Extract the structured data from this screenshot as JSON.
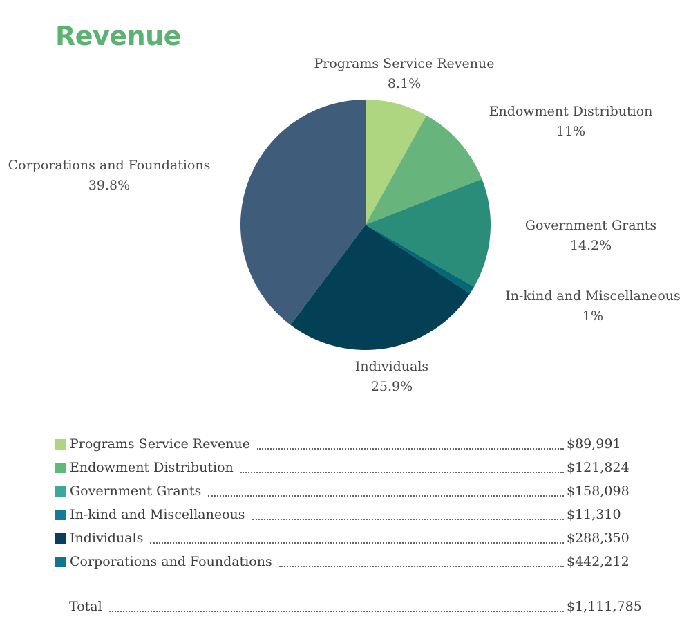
{
  "page": {
    "title": "Revenue",
    "total_label": "Total",
    "total_value": "$1,111,785"
  },
  "chart_data": {
    "type": "pie",
    "title": "Revenue",
    "series": [
      {
        "name": "Programs Service Revenue",
        "value": 89991,
        "value_label": "$89,991",
        "percent": 8.1,
        "percent_label": "8.1%",
        "color": "#aed57f"
      },
      {
        "name": "Endowment Distribution",
        "value": 121824,
        "value_label": "$121,824",
        "percent": 11,
        "percent_label": "11%",
        "color": "#67b47c"
      },
      {
        "name": "Government Grants",
        "value": 158098,
        "value_label": "$158,098",
        "percent": 14.2,
        "percent_label": "14.2%",
        "color": "#2a8d7a"
      },
      {
        "name": "In-kind and Miscellaneous",
        "value": 11310,
        "value_label": "$11,310",
        "percent": 1,
        "percent_label": "1%",
        "color": "#076775"
      },
      {
        "name": "Individuals",
        "value": 288350,
        "value_label": "$288,350",
        "percent": 25.9,
        "percent_label": "25.9%",
        "color": "#033f55"
      },
      {
        "name": "Corporations and Foundations",
        "value": 442212,
        "value_label": "$442,212",
        "percent": 39.8,
        "percent_label": "39.8%",
        "color": "#3f5d7b"
      }
    ],
    "legend_swatch_colors": [
      "#aed57f",
      "#5cbb77",
      "#3aa89b",
      "#157a95",
      "#083f5f",
      "#12758d"
    ]
  }
}
